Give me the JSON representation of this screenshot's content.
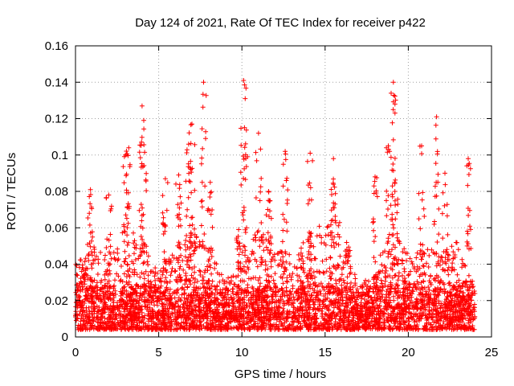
{
  "chart_data": {
    "type": "scatter",
    "title": "Day 124 of 2021, Rate Of TEC Index for receiver p422",
    "xlabel": "GPS time / hours",
    "ylabel": "ROTI / TECUs",
    "xlim": [
      0,
      25
    ],
    "ylim": [
      0,
      0.16
    ],
    "xticks": [
      0,
      5,
      10,
      15,
      20,
      25
    ],
    "xtick_labels": [
      "0",
      "5",
      "10",
      "15",
      "20",
      "25"
    ],
    "yticks": [
      0,
      0.02,
      0.04,
      0.06,
      0.08,
      0.1,
      0.12,
      0.14,
      0.16
    ],
    "ytick_labels": [
      "0",
      "0.02",
      "0.04",
      "0.06",
      "0.08",
      "0.1",
      "0.12",
      "0.14",
      "0.16"
    ],
    "grid": true,
    "marker": "+",
    "series_color": "#ff0000",
    "x_range_of_data": [
      0,
      24
    ],
    "peaks": [
      {
        "x": 0.9,
        "y": 0.081
      },
      {
        "x": 2.0,
        "y": 0.078
      },
      {
        "x": 3.0,
        "y": 0.1
      },
      {
        "x": 3.2,
        "y": 0.104
      },
      {
        "x": 4.0,
        "y": 0.127
      },
      {
        "x": 4.1,
        "y": 0.119
      },
      {
        "x": 5.4,
        "y": 0.087
      },
      {
        "x": 6.2,
        "y": 0.089
      },
      {
        "x": 6.8,
        "y": 0.106
      },
      {
        "x": 7.0,
        "y": 0.117
      },
      {
        "x": 7.7,
        "y": 0.14
      },
      {
        "x": 8.1,
        "y": 0.085
      },
      {
        "x": 9.8,
        "y": 0.059
      },
      {
        "x": 10.1,
        "y": 0.141
      },
      {
        "x": 10.2,
        "y": 0.131
      },
      {
        "x": 11.0,
        "y": 0.112
      },
      {
        "x": 11.6,
        "y": 0.08
      },
      {
        "x": 12.6,
        "y": 0.102
      },
      {
        "x": 14.1,
        "y": 0.101
      },
      {
        "x": 15.5,
        "y": 0.098
      },
      {
        "x": 18.0,
        "y": 0.088
      },
      {
        "x": 18.8,
        "y": 0.105
      },
      {
        "x": 19.1,
        "y": 0.14
      },
      {
        "x": 19.2,
        "y": 0.128
      },
      {
        "x": 20.8,
        "y": 0.105
      },
      {
        "x": 21.7,
        "y": 0.121
      },
      {
        "x": 22.2,
        "y": 0.09
      },
      {
        "x": 23.6,
        "y": 0.098
      }
    ],
    "activity_envelope": {
      "hours": [
        0,
        1,
        2,
        3,
        4,
        5,
        6,
        7,
        8,
        9,
        10,
        11,
        12,
        13,
        14,
        15,
        16,
        17,
        18,
        19,
        20,
        21,
        22,
        23,
        24
      ],
      "upper_dense_y": [
        0.04,
        0.05,
        0.045,
        0.06,
        0.055,
        0.035,
        0.05,
        0.06,
        0.05,
        0.03,
        0.045,
        0.06,
        0.05,
        0.045,
        0.055,
        0.065,
        0.07,
        0.025,
        0.04,
        0.06,
        0.045,
        0.05,
        0.045,
        0.055,
        0.03
      ]
    }
  }
}
